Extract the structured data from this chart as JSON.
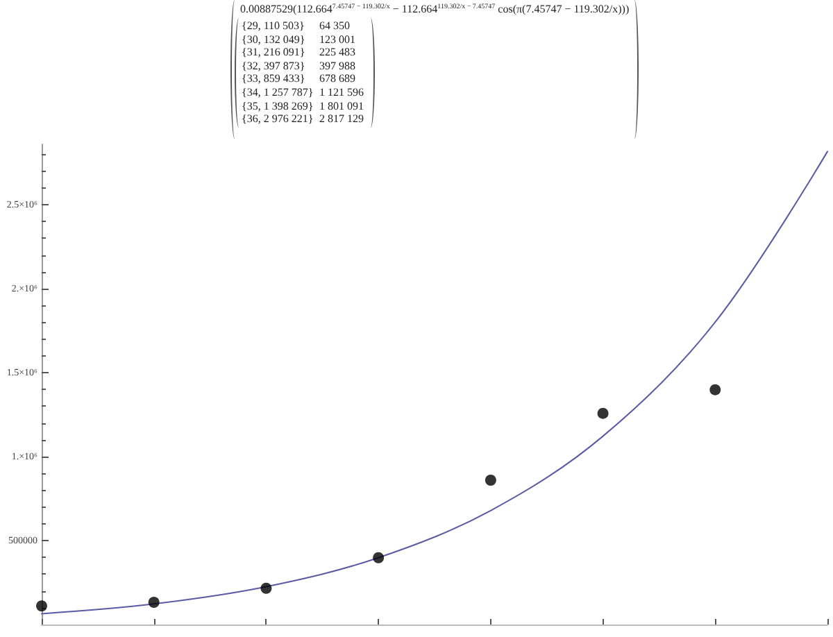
{
  "chart_data": {
    "type": "scatter",
    "annotations": [
      "0.00887529(112.664$^{7.45747 − 119.302/x}$ − 112.664$^{119.302/x − 7.45747}$ cos(π(7.45747 − 119.302/x)))",
      "{29, 110 503}",
      "64 350",
      "{30, 132 049}",
      "123 001",
      "{31, 216 091}",
      "225 483",
      "{32, 397 873}",
      "397 988",
      "{33, 859 433}",
      "678 689",
      "{34, 1 257 787}",
      "1 121 596",
      "{35, 1 398 269}",
      "1 801 091",
      "{36, 2 976 221}",
      "2 817 129"
    ],
    "categories": [
      null,
      null,
      null,
      null,
      null,
      null,
      null,
      null
    ],
    "series": [
      {
        "type": "line",
        "color": "#5a5aa6",
        "marker": "none",
        "values": [
          64350,
          123001,
          225483,
          397988,
          678689,
          1121596,
          1801091,
          2817129
        ]
      },
      {
        "type": "scatter",
        "color": "#000000",
        "marker": "circle",
        "values": [
          110503,
          132049,
          216091,
          397873,
          859433,
          1257787,
          1398269,
          null
        ]
      }
    ],
    "ylim": [
      0,
      2860000
    ],
    "yticks": [
      {
        "value": 100000,
        "label": null
      },
      {
        "value": 200000,
        "label": null
      },
      {
        "value": 300000,
        "label": null
      },
      {
        "value": 400000,
        "label": null
      },
      500000,
      {
        "value": 600000,
        "label": null
      },
      {
        "value": 700000,
        "label": null
      },
      {
        "value": 800000,
        "label": null
      },
      {
        "value": 900000,
        "label": null
      },
      {
        "value": 1000000,
        "label": "1.×10⁶"
      },
      {
        "value": 1100000,
        "label": null
      },
      {
        "value": 1200000,
        "label": null
      },
      {
        "value": 1300000,
        "label": null
      },
      {
        "value": 1400000,
        "label": null
      },
      {
        "value": 1500000,
        "label": "1.5×10⁶"
      },
      {
        "value": 1600000,
        "label": null
      },
      {
        "value": 1700000,
        "label": null
      },
      {
        "value": 1800000,
        "label": null
      },
      {
        "value": 1900000,
        "label": null
      },
      {
        "value": 2000000,
        "label": "2.×10⁶"
      },
      {
        "value": 2100000,
        "label": null
      },
      {
        "value": 2200000,
        "label": null
      },
      {
        "value": 2300000,
        "label": null
      },
      {
        "value": 2400000,
        "label": null
      },
      {
        "value": 2500000,
        "label": "2.5×10⁶"
      },
      {
        "value": 2600000,
        "label": null
      },
      {
        "value": 2700000,
        "label": null
      },
      {
        "value": 2800000,
        "label": null
      }
    ],
    "tick_labels": "y"
  }
}
